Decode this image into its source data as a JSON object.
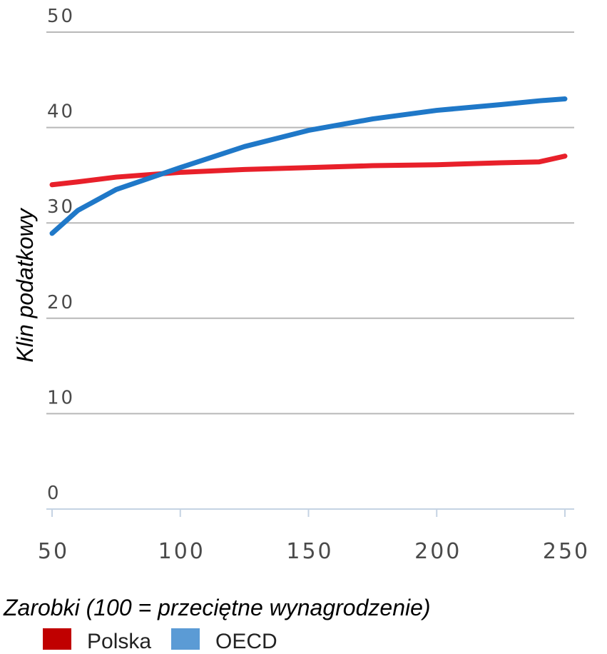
{
  "chart_data": {
    "type": "line",
    "x_label": "Zarobki (100 = przeciętne wynagrodzenie)",
    "y_label": "Klin podatkowy",
    "x": [
      50,
      60,
      75,
      100,
      125,
      150,
      175,
      200,
      225,
      240,
      250
    ],
    "series": [
      {
        "name": "Polska",
        "color": "#e8202a",
        "values": [
          34.0,
          34.3,
          34.8,
          35.3,
          35.6,
          35.8,
          36.0,
          36.1,
          36.3,
          36.4,
          37.0
        ]
      },
      {
        "name": "OECD",
        "color": "#1f78c8",
        "values": [
          28.9,
          31.3,
          33.5,
          35.8,
          38.0,
          39.7,
          40.9,
          41.8,
          42.4,
          42.8,
          43.0
        ]
      }
    ],
    "legend_colors": [
      "#c00000",
      "#5b9bd5"
    ],
    "xlim": [
      50,
      250
    ],
    "xticks": [
      50,
      100,
      150,
      200,
      250
    ],
    "ylim": [
      0,
      50
    ],
    "yticks": [
      0,
      10,
      20,
      30,
      40,
      50
    ],
    "grid": true,
    "legend": "bottom"
  }
}
